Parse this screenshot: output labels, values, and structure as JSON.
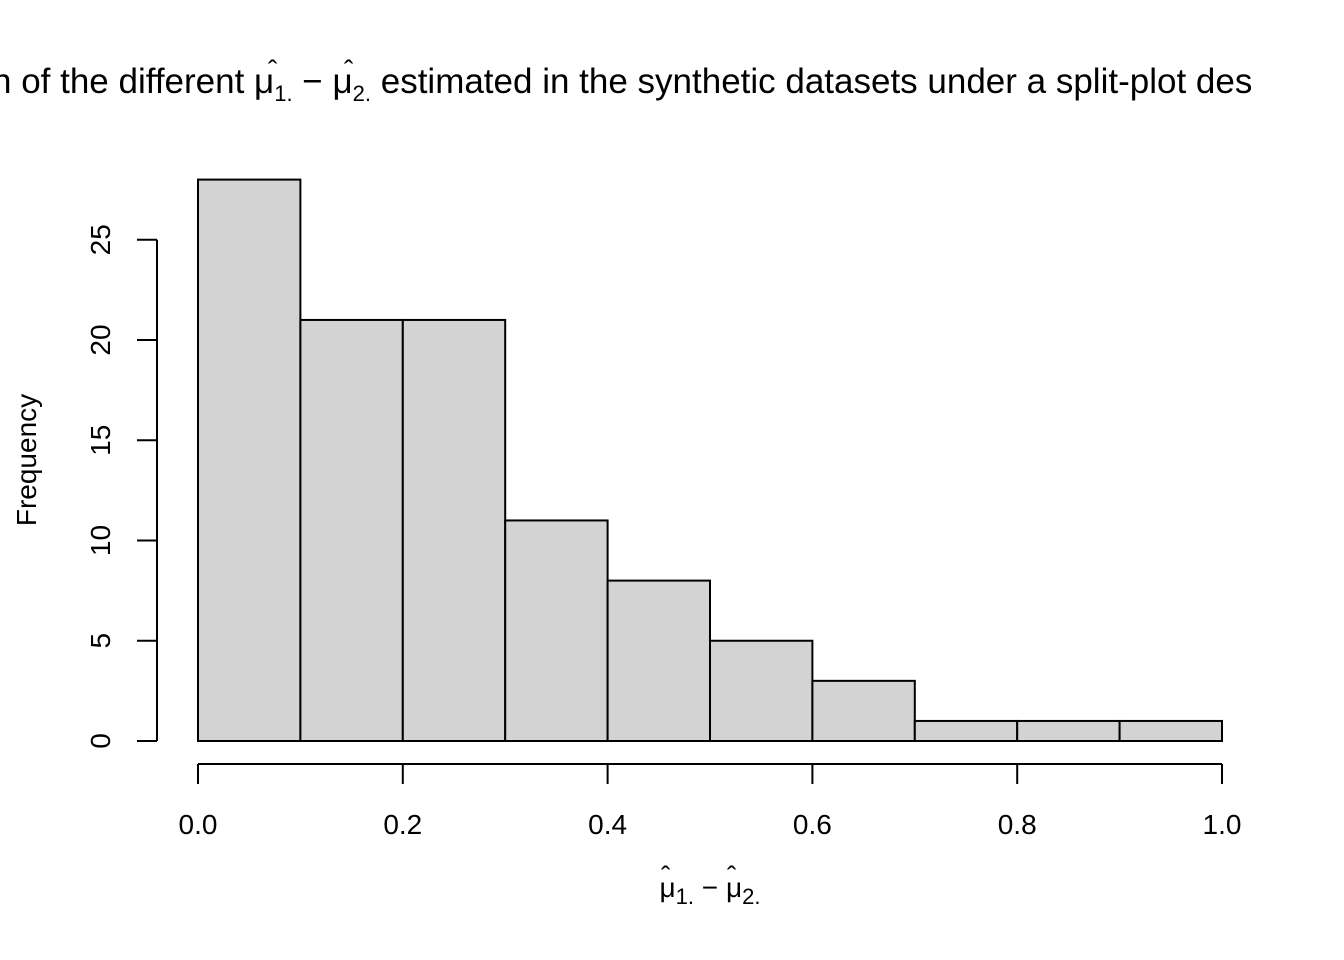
{
  "chart_data": {
    "type": "bar",
    "title": {
      "prefix": "n of the different ",
      "mu": "μ",
      "sub1": "1.",
      "minus": " − ",
      "sub2": "2.",
      "suffix": " estimated in the synthetic datasets under a split-plot des"
    },
    "xlabel": {
      "mu": "μ",
      "sub1": "1.",
      "minus": " − ",
      "sub2": "2."
    },
    "ylabel": "Frequency",
    "bin_edges": [
      0.0,
      0.1,
      0.2,
      0.3,
      0.4,
      0.5,
      0.6,
      0.7,
      0.8,
      0.9,
      1.0
    ],
    "values": [
      28,
      21,
      21,
      11,
      8,
      5,
      3,
      1,
      1,
      1
    ],
    "xlim": [
      0.0,
      1.0
    ],
    "ylim": [
      0,
      28
    ],
    "x_ticks": [
      "0.0",
      "0.2",
      "0.4",
      "0.6",
      "0.8",
      "1.0"
    ],
    "y_ticks": [
      "0",
      "5",
      "10",
      "15",
      "20",
      "25"
    ],
    "bar_fill": "#d3d3d3",
    "bar_stroke": "#000000",
    "grid": false,
    "legend": "none"
  }
}
